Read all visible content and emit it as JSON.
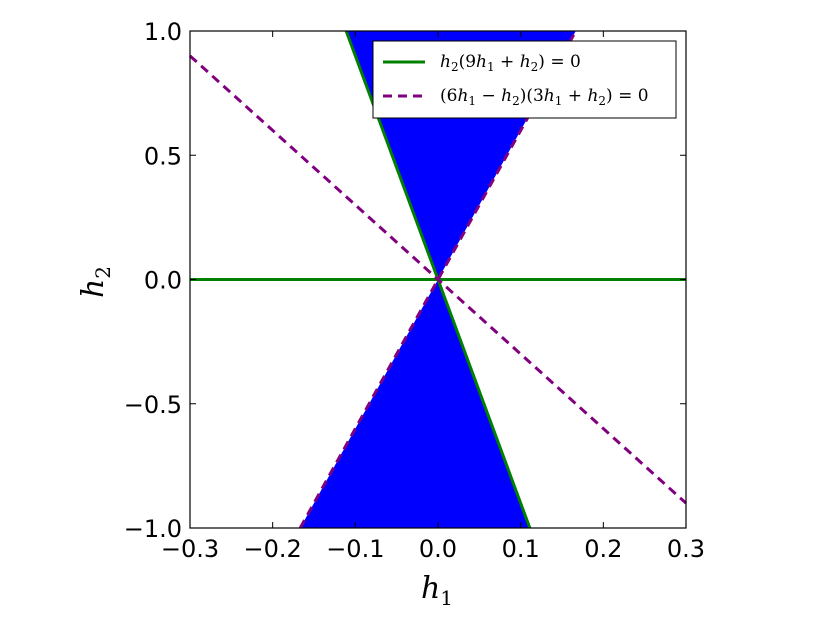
{
  "chart_data": {
    "type": "area",
    "xlabel": {
      "base": "h",
      "sub": "1"
    },
    "ylabel": {
      "base": "h",
      "sub": "2"
    },
    "xlim": [
      -0.3,
      0.3
    ],
    "ylim": [
      -1.0,
      1.0
    ],
    "xticks": [
      {
        "value": -0.3,
        "label": "−0.3"
      },
      {
        "value": -0.2,
        "label": "−0.2"
      },
      {
        "value": -0.1,
        "label": "−0.1"
      },
      {
        "value": 0.0,
        "label": "0.0"
      },
      {
        "value": 0.1,
        "label": "0.1"
      },
      {
        "value": 0.2,
        "label": "0.2"
      },
      {
        "value": 0.3,
        "label": "0.3"
      }
    ],
    "yticks": [
      {
        "value": 1.0,
        "label": "1.0"
      },
      {
        "value": 0.5,
        "label": "0.5"
      },
      {
        "value": 0.0,
        "label": "0.0"
      },
      {
        "value": -0.5,
        "label": "−0.5"
      },
      {
        "value": -1.0,
        "label": "−1.0"
      }
    ],
    "grid": false,
    "legend_position": "top-right",
    "fill_color": "#0000ff",
    "fill_regions": [
      {
        "points": [
          [
            0,
            0
          ],
          [
            -0.1111,
            1.0
          ],
          [
            0.1667,
            1.0
          ]
        ]
      },
      {
        "points": [
          [
            0,
            0
          ],
          [
            0.1111,
            -1.0
          ],
          [
            -0.1667,
            -1.0
          ]
        ]
      }
    ],
    "series": [
      {
        "name": "h_2(9h_1 + h_2) = 0",
        "legend_parts": [
          "h",
          "2",
          "(9",
          "h",
          "1",
          " + ",
          "h",
          "2",
          ") = 0"
        ],
        "color": "#008000",
        "style": "solid",
        "lines": [
          {
            "x": [
              -0.3,
              0.3
            ],
            "y": [
              0.0,
              0.0
            ]
          },
          {
            "x": [
              -0.1111,
              0.1111
            ],
            "y": [
              1.0,
              -1.0
            ]
          }
        ]
      },
      {
        "name": "(6h_1 − h_2)(3h_1 + h_2) = 0",
        "legend_parts": [
          "(6",
          "h",
          "1",
          " − ",
          "h",
          "2",
          ")(3",
          "h",
          "1",
          " + ",
          "h",
          "2",
          ") = 0"
        ],
        "color": "#800080",
        "style": "dashed",
        "lines": [
          {
            "x": [
              -0.1667,
              0.1667
            ],
            "y": [
              -1.0,
              1.0
            ]
          },
          {
            "x": [
              -0.3,
              0.3
            ],
            "y": [
              0.9,
              -0.9
            ]
          }
        ]
      }
    ]
  }
}
